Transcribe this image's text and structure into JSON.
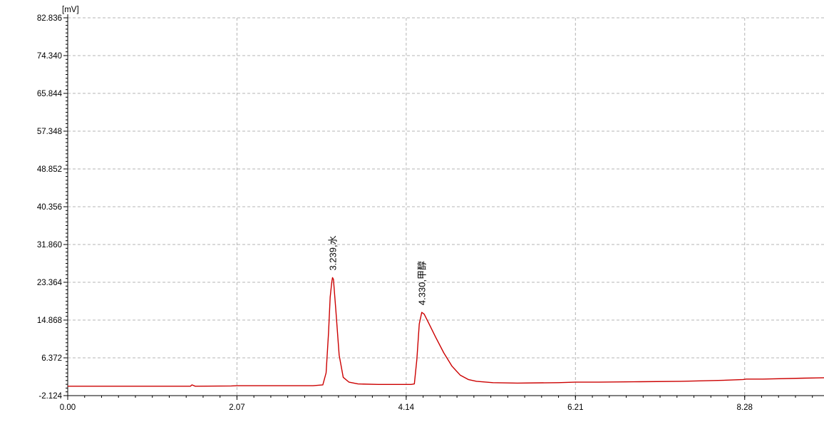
{
  "chart_data": {
    "type": "line",
    "unit_label": "[mV]",
    "x_ticks": [
      "0.00",
      "2.07",
      "4.14",
      "6.21",
      "8.28"
    ],
    "y_ticks": [
      "82.836",
      "74.340",
      "65.844",
      "57.348",
      "48.852",
      "40.356",
      "31.860",
      "23.364",
      "14.868",
      "6.372",
      "-2.124"
    ],
    "xlim": [
      0.0,
      9.25
    ],
    "ylim": [
      -2.124,
      82.836
    ],
    "grid": true,
    "series": [
      {
        "color": "#cc0000",
        "x": [
          0.0,
          0.5,
          1.0,
          1.5,
          1.52,
          1.56,
          2.0,
          2.07,
          2.5,
          3.0,
          3.12,
          3.16,
          3.19,
          3.21,
          3.23,
          3.239,
          3.25,
          3.28,
          3.32,
          3.37,
          3.44,
          3.55,
          3.8,
          4.0,
          4.2,
          4.24,
          4.27,
          4.3,
          4.33,
          4.36,
          4.42,
          4.5,
          4.6,
          4.7,
          4.8,
          4.9,
          5.0,
          5.2,
          5.5,
          6.0,
          6.21,
          6.5,
          7.0,
          7.5,
          8.0,
          8.26,
          8.3,
          8.5,
          9.0,
          9.25
        ],
        "y": [
          0.0,
          0.0,
          0.0,
          0.0,
          0.3,
          0.0,
          0.05,
          0.1,
          0.1,
          0.1,
          0.3,
          3.0,
          12.0,
          20.0,
          23.5,
          24.4,
          24.0,
          17.0,
          7.0,
          2.0,
          0.9,
          0.5,
          0.4,
          0.4,
          0.4,
          0.5,
          6.0,
          14.0,
          16.6,
          16.2,
          14.0,
          11.0,
          7.5,
          4.5,
          2.5,
          1.5,
          1.1,
          0.8,
          0.7,
          0.8,
          0.9,
          0.9,
          1.0,
          1.1,
          1.3,
          1.5,
          1.6,
          1.6,
          1.8,
          1.9
        ]
      }
    ],
    "annotations": [
      {
        "x": 3.239,
        "y": 24.4,
        "label": "3.239,水"
      },
      {
        "x": 4.33,
        "y": 16.6,
        "label": "4.330,甲醇"
      }
    ]
  }
}
